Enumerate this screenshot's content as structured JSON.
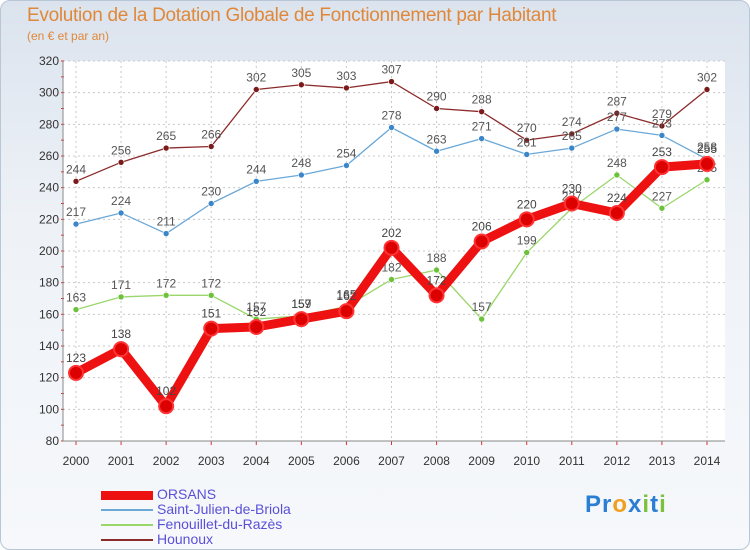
{
  "title": "Evolution de la Dotation Globale de Fonctionnement par Habitant",
  "subtitle": "(en € et par an)",
  "logo": {
    "parts": [
      {
        "text": "P",
        "color": "#2a7fd4"
      },
      {
        "text": "r",
        "color": "#2a7fd4"
      },
      {
        "text": "o",
        "color": "#f0a020"
      },
      {
        "text": "x",
        "color": "#2a7fd4"
      },
      {
        "text": "i",
        "color": "#7cc13e"
      },
      {
        "text": "t",
        "color": "#2a7fd4"
      },
      {
        "text": "i",
        "color": "#7cc13e"
      }
    ]
  },
  "chart_data": {
    "type": "line",
    "title": "Evolution de la Dotation Globale de Fonctionnement par Habitant",
    "subtitle": "(en € et par an)",
    "xlabel": "",
    "ylabel": "",
    "ylim": [
      80,
      320
    ],
    "yticks": [
      80,
      100,
      120,
      140,
      160,
      180,
      200,
      220,
      240,
      260,
      280,
      300,
      320
    ],
    "categories": [
      "2000",
      "2001",
      "2002",
      "2003",
      "2004",
      "2005",
      "2006",
      "2007",
      "2008",
      "2009",
      "2010",
      "2011",
      "2012",
      "2013",
      "2014"
    ],
    "grid": true,
    "legend_position": "bottom-left",
    "series": [
      {
        "name": "ORSANS",
        "color": "#ee1111",
        "marker_color": "#dd0000",
        "values": [
          123,
          138,
          102,
          151,
          152,
          157,
          162,
          202,
          172,
          206,
          220,
          230,
          224,
          253,
          255
        ]
      },
      {
        "name": "Saint-Julien-de-Briola",
        "color": "#6aa8d8",
        "marker_color": "#3a86c8",
        "values": [
          217,
          224,
          211,
          230,
          244,
          248,
          254,
          278,
          263,
          271,
          261,
          265,
          277,
          273,
          258
        ]
      },
      {
        "name": "Fenouillet-du-Razès",
        "color": "#9ad66a",
        "marker_color": "#6cc23a",
        "values": [
          163,
          171,
          172,
          172,
          157,
          159,
          165,
          182,
          188,
          157,
          199,
          227,
          248,
          227,
          245
        ]
      },
      {
        "name": "Hounoux",
        "color": "#8b2a2a",
        "marker_color": "#7a1a1a",
        "values": [
          244,
          256,
          265,
          266,
          302,
          305,
          303,
          307,
          290,
          288,
          270,
          274,
          287,
          279,
          302
        ]
      }
    ]
  }
}
